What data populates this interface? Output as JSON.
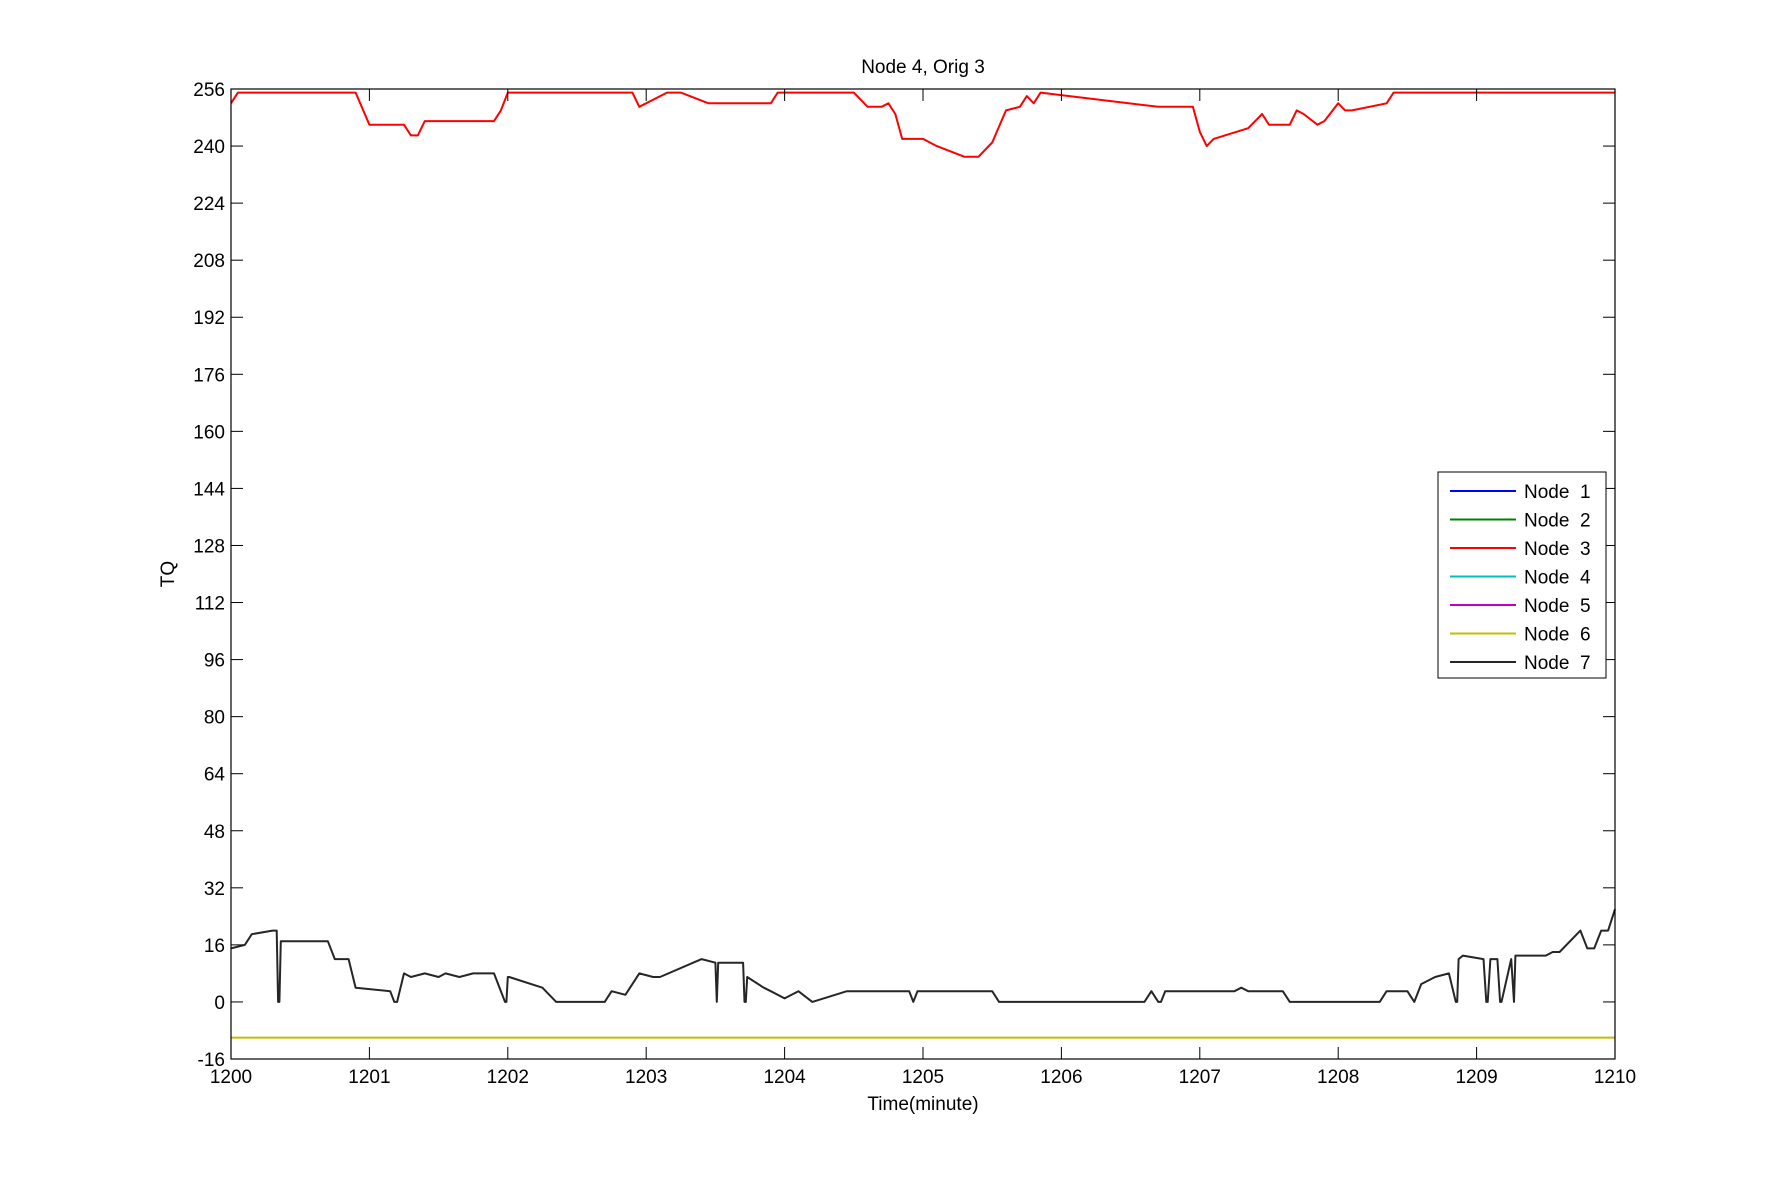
{
  "chart_data": {
    "type": "line",
    "title": "Node 4, Orig 3",
    "xlabel": "Time(minute)",
    "ylabel": "TQ",
    "xlim": [
      1200,
      1210
    ],
    "ylim": [
      -16,
      256
    ],
    "xticks": [
      "1200",
      "1201",
      "1202",
      "1203",
      "1204",
      "1205",
      "1206",
      "1207",
      "1208",
      "1209",
      "1210"
    ],
    "yticks": [
      "-16",
      "0",
      "16",
      "32",
      "48",
      "64",
      "80",
      "96",
      "112",
      "128",
      "144",
      "160",
      "176",
      "192",
      "208",
      "224",
      "240",
      "256"
    ],
    "grid": false,
    "legend_position": "right",
    "series": [
      {
        "name": "Node  1",
        "color": "#0000ff",
        "x": [],
        "y": []
      },
      {
        "name": "Node  2",
        "color": "#008000",
        "x": [],
        "y": []
      },
      {
        "name": "Node  3",
        "color": "#ff0000",
        "x": [
          1200,
          1200.05,
          1200.9,
          1201.0,
          1201.25,
          1201.3,
          1201.35,
          1201.4,
          1201.45,
          1201.9,
          1201.95,
          1202.0,
          1202.9,
          1202.95,
          1203.15,
          1203.25,
          1203.45,
          1203.5,
          1203.9,
          1203.95,
          1204.5,
          1204.6,
          1204.7,
          1204.75,
          1204.8,
          1204.85,
          1205.0,
          1205.1,
          1205.3,
          1205.4,
          1205.5,
          1205.6,
          1205.7,
          1205.75,
          1205.8,
          1205.85,
          1206.7,
          1206.95,
          1207.0,
          1207.05,
          1207.1,
          1207.35,
          1207.4,
          1207.45,
          1207.5,
          1207.65,
          1207.7,
          1207.75,
          1207.85,
          1207.9,
          1208.0,
          1208.05,
          1208.1,
          1208.35,
          1208.4,
          1208.5,
          1209.0,
          1210
        ],
        "y": [
          252,
          255,
          255,
          246,
          246,
          243,
          243,
          247,
          247,
          247,
          250,
          255,
          255,
          251,
          255,
          255,
          252,
          252,
          252,
          255,
          255,
          251,
          251,
          252,
          249,
          242,
          242,
          240,
          237,
          237,
          241,
          250,
          251,
          254,
          252,
          255,
          251,
          251,
          244,
          240,
          242,
          245,
          247,
          249,
          246,
          246,
          250,
          249,
          246,
          247,
          252,
          250,
          250,
          252,
          255,
          255,
          255,
          255
        ]
      },
      {
        "name": "Node  4",
        "color": "#00bfbf",
        "x": [],
        "y": []
      },
      {
        "name": "Node  5",
        "color": "#bf00bf",
        "x": [],
        "y": []
      },
      {
        "name": "Node  6",
        "color": "#bfbf00",
        "x": [
          1200,
          1210
        ],
        "y": [
          -10,
          -10
        ]
      },
      {
        "name": "Node  7",
        "color": "#262626",
        "x": [
          1200,
          1200.1,
          1200.15,
          1200.3,
          1200.33,
          1200.34,
          1200.35,
          1200.36,
          1200.37,
          1200.7,
          1200.75,
          1200.85,
          1200.9,
          1201.15,
          1201.18,
          1201.2,
          1201.25,
          1201.3,
          1201.4,
          1201.5,
          1201.55,
          1201.65,
          1201.75,
          1201.9,
          1201.98,
          1201.99,
          1202.0,
          1202.01,
          1202.25,
          1202.3,
          1202.35,
          1202.7,
          1202.75,
          1202.85,
          1202.95,
          1203.05,
          1203.1,
          1203.4,
          1203.5,
          1203.51,
          1203.52,
          1203.53,
          1203.7,
          1203.71,
          1203.72,
          1203.73,
          1203.85,
          1203.9,
          1204.0,
          1204.1,
          1204.2,
          1204.45,
          1204.9,
          1204.93,
          1204.96,
          1205.5,
          1205.55,
          1206.6,
          1206.65,
          1206.7,
          1206.72,
          1206.75,
          1207.25,
          1207.3,
          1207.35,
          1207.6,
          1207.65,
          1208.3,
          1208.35,
          1208.5,
          1208.55,
          1208.6,
          1208.7,
          1208.8,
          1208.85,
          1208.86,
          1208.87,
          1208.9,
          1209.05,
          1209.07,
          1209.08,
          1209.1,
          1209.15,
          1209.17,
          1209.18,
          1209.25,
          1209.27,
          1209.28,
          1209.5,
          1209.55,
          1209.6,
          1209.75,
          1209.8,
          1209.85,
          1209.9,
          1209.95,
          1210
        ],
        "y": [
          15,
          16,
          19,
          20,
          20,
          0,
          0,
          17,
          17,
          17,
          12,
          12,
          4,
          3,
          0,
          0,
          8,
          7,
          8,
          7,
          8,
          7,
          8,
          8,
          0,
          0,
          7,
          7,
          4,
          2,
          0,
          0,
          3,
          2,
          8,
          7,
          7,
          12,
          11,
          0,
          11,
          11,
          11,
          0,
          0,
          7,
          4,
          3,
          1,
          3,
          0,
          3,
          3,
          0,
          3,
          3,
          0,
          0,
          3,
          0,
          0,
          3,
          3,
          4,
          3,
          3,
          0,
          0,
          3,
          3,
          0,
          5,
          7,
          8,
          0,
          0,
          12,
          13,
          12,
          0,
          0,
          12,
          12,
          0,
          0,
          12,
          0,
          13,
          13,
          14,
          14,
          20,
          15,
          15,
          20,
          20,
          26
        ]
      }
    ]
  }
}
